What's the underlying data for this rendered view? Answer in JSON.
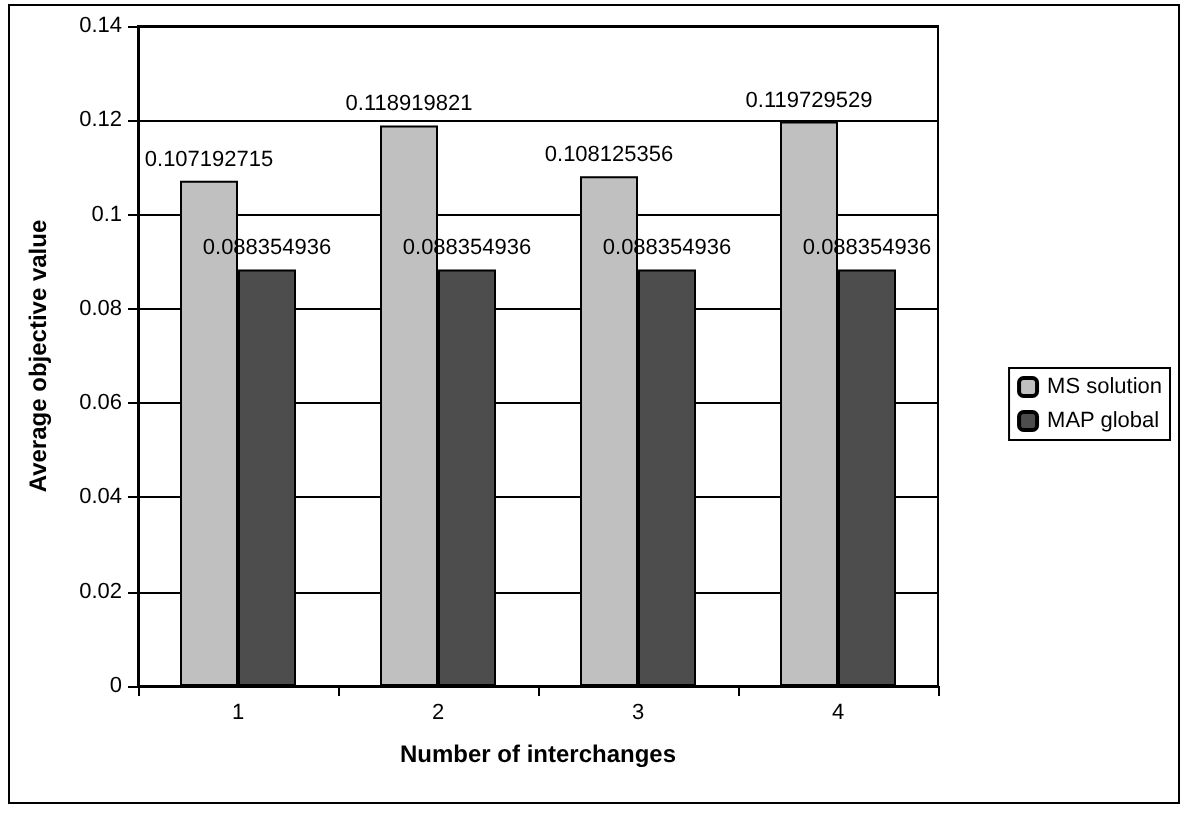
{
  "chart_data": {
    "type": "bar",
    "xlabel": "Number of interchanges",
    "ylabel": "Average objective value",
    "categories": [
      "1",
      "2",
      "3",
      "4"
    ],
    "series": [
      {
        "name": "MS solution",
        "color": "#c0c0c0",
        "values": [
          0.107192715,
          0.118919821,
          0.108125356,
          0.119729529
        ]
      },
      {
        "name": "MAP global",
        "color": "#4d4d4d",
        "values": [
          0.088354936,
          0.088354936,
          0.088354936,
          0.088354936
        ]
      }
    ],
    "ylim": [
      0,
      0.14
    ],
    "yticks": [
      0,
      0.02,
      0.04,
      0.06,
      0.08,
      0.1,
      0.12,
      0.14
    ],
    "grid": "y",
    "legend": "right",
    "data_labels": true
  }
}
